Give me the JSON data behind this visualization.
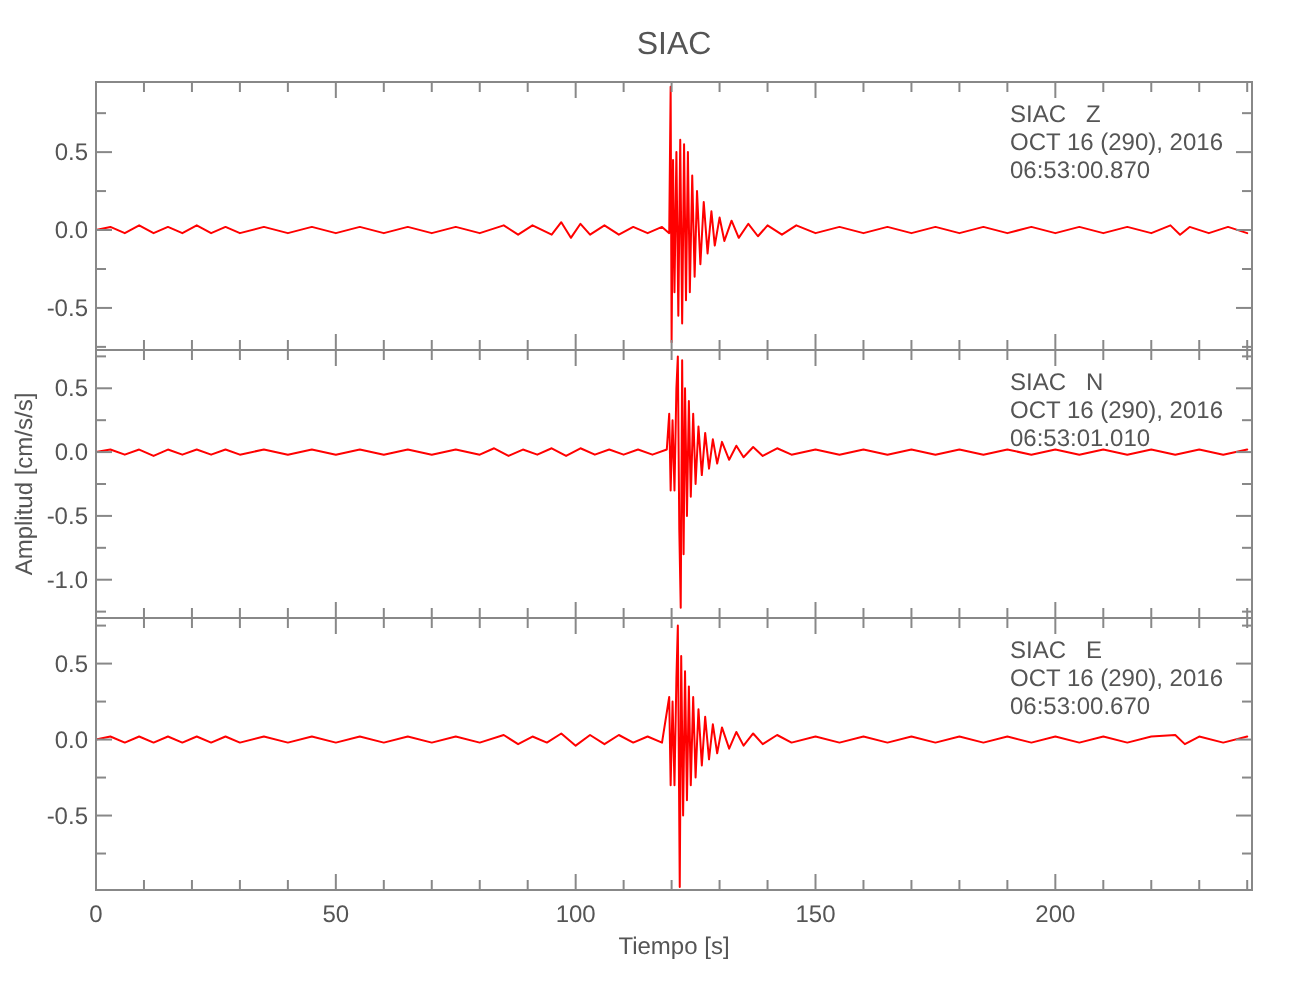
{
  "chart_data": [
    {
      "type": "line",
      "title": "SIAC",
      "annotations": [
        "SIAC   Z",
        "OCT 16 (290), 2016",
        "06:53:00.870"
      ],
      "tick_labels": "y",
      "xlim": [
        0,
        241
      ],
      "ylim": [
        -0.77,
        0.95
      ],
      "xticks": [
        {
          "value": 0,
          "label": null
        },
        {
          "value": 10,
          "label": null
        },
        {
          "value": 20,
          "label": null
        },
        {
          "value": 30,
          "label": null
        },
        {
          "value": 40,
          "label": null
        },
        {
          "value": 50,
          "label": null
        },
        {
          "value": 60,
          "label": null
        },
        {
          "value": 70,
          "label": null
        },
        {
          "value": 80,
          "label": null
        },
        {
          "value": 90,
          "label": null
        },
        {
          "value": 100,
          "label": null
        },
        {
          "value": 110,
          "label": null
        },
        {
          "value": 120,
          "label": null
        },
        {
          "value": 130,
          "label": null
        },
        {
          "value": 140,
          "label": null
        },
        {
          "value": 150,
          "label": null
        },
        {
          "value": 160,
          "label": null
        },
        {
          "value": 170,
          "label": null
        },
        {
          "value": 180,
          "label": null
        },
        {
          "value": 190,
          "label": null
        },
        {
          "value": 200,
          "label": null
        },
        {
          "value": 210,
          "label": null
        },
        {
          "value": 220,
          "label": null
        },
        {
          "value": 230,
          "label": null
        },
        {
          "value": 240,
          "label": null
        }
      ],
      "yticks": [
        {
          "value": 0.75,
          "label": null
        },
        {
          "value": 0.5,
          "label": "0.5"
        },
        {
          "value": 0.25,
          "label": null
        },
        {
          "value": 0,
          "label": "0.0"
        },
        {
          "value": -0.25,
          "label": null
        },
        {
          "value": -0.5,
          "label": "-0.5"
        },
        {
          "value": -0.75,
          "label": null
        }
      ],
      "series": [
        {
          "color": "#ff0000",
          "x": [
            0,
            3,
            6,
            9,
            12,
            15,
            18,
            21,
            24,
            27,
            30,
            35,
            40,
            45,
            50,
            55,
            60,
            65,
            70,
            75,
            80,
            85,
            88,
            91,
            95,
            97,
            99,
            101,
            103,
            106,
            109,
            112,
            115,
            118,
            119.5,
            119.8,
            120,
            120.3,
            120.6,
            121,
            121.4,
            121.8,
            122.2,
            122.6,
            123,
            123.4,
            123.8,
            124.3,
            124.8,
            125.3,
            126,
            126.7,
            127.5,
            128.3,
            129,
            130,
            131,
            132.5,
            134,
            136,
            138,
            140,
            143,
            146,
            150,
            155,
            160,
            165,
            170,
            175,
            180,
            185,
            190,
            195,
            200,
            205,
            210,
            215,
            220,
            224,
            226,
            228,
            232,
            236,
            240
          ],
          "values": [
            0,
            0.02,
            -0.02,
            0.03,
            -0.02,
            0.02,
            -0.02,
            0.03,
            -0.02,
            0.02,
            -0.02,
            0.02,
            -0.02,
            0.02,
            -0.02,
            0.02,
            -0.02,
            0.02,
            -0.02,
            0.02,
            -0.02,
            0.03,
            -0.03,
            0.03,
            -0.03,
            0.05,
            -0.05,
            0.04,
            -0.03,
            0.03,
            -0.03,
            0.02,
            -0.02,
            0.02,
            -0.02,
            0.92,
            -0.72,
            0.45,
            -0.4,
            0.5,
            -0.55,
            0.58,
            -0.6,
            0.55,
            -0.45,
            0.5,
            -0.4,
            0.35,
            -0.3,
            0.25,
            -0.22,
            0.18,
            -0.15,
            0.12,
            -0.1,
            0.08,
            -0.07,
            0.06,
            -0.05,
            0.04,
            -0.04,
            0.03,
            -0.03,
            0.03,
            -0.02,
            0.02,
            -0.02,
            0.02,
            -0.02,
            0.02,
            -0.02,
            0.02,
            -0.02,
            0.02,
            -0.02,
            0.02,
            -0.02,
            0.02,
            -0.02,
            0.03,
            -0.03,
            0.02,
            -0.02,
            0.02,
            -0.02
          ]
        }
      ]
    },
    {
      "type": "line",
      "ylabel": "Amplitud [cm/s/s]",
      "annotations": [
        "SIAC   N",
        "OCT 16 (290), 2016",
        "06:53:01.010"
      ],
      "tick_labels": "y",
      "xlim": [
        0,
        241
      ],
      "ylim": [
        -1.3,
        0.8
      ],
      "xticks": [
        {
          "value": 0,
          "label": null
        },
        {
          "value": 10,
          "label": null
        },
        {
          "value": 20,
          "label": null
        },
        {
          "value": 30,
          "label": null
        },
        {
          "value": 40,
          "label": null
        },
        {
          "value": 50,
          "label": null
        },
        {
          "value": 60,
          "label": null
        },
        {
          "value": 70,
          "label": null
        },
        {
          "value": 80,
          "label": null
        },
        {
          "value": 90,
          "label": null
        },
        {
          "value": 100,
          "label": null
        },
        {
          "value": 110,
          "label": null
        },
        {
          "value": 120,
          "label": null
        },
        {
          "value": 130,
          "label": null
        },
        {
          "value": 140,
          "label": null
        },
        {
          "value": 150,
          "label": null
        },
        {
          "value": 160,
          "label": null
        },
        {
          "value": 170,
          "label": null
        },
        {
          "value": 180,
          "label": null
        },
        {
          "value": 190,
          "label": null
        },
        {
          "value": 200,
          "label": null
        },
        {
          "value": 210,
          "label": null
        },
        {
          "value": 220,
          "label": null
        },
        {
          "value": 230,
          "label": null
        },
        {
          "value": 240,
          "label": null
        }
      ],
      "yticks": [
        {
          "value": 0.75,
          "label": null
        },
        {
          "value": 0.5,
          "label": "0.5"
        },
        {
          "value": 0.25,
          "label": null
        },
        {
          "value": 0,
          "label": "0.0"
        },
        {
          "value": -0.25,
          "label": null
        },
        {
          "value": -0.5,
          "label": "-0.5"
        },
        {
          "value": -0.75,
          "label": null
        },
        {
          "value": -1,
          "label": "-1.0"
        },
        {
          "value": -1.25,
          "label": null
        }
      ],
      "series": [
        {
          "color": "#ff0000",
          "x": [
            0,
            3,
            6,
            9,
            12,
            15,
            18,
            21,
            24,
            27,
            30,
            35,
            40,
            45,
            50,
            55,
            60,
            65,
            70,
            75,
            80,
            83,
            86,
            89,
            92,
            95,
            98,
            101,
            104,
            107,
            110,
            113,
            116,
            119,
            119.5,
            119.8,
            120.2,
            120.6,
            121,
            121.3,
            121.6,
            121.9,
            122.2,
            122.5,
            122.8,
            123.2,
            123.6,
            124,
            124.5,
            125,
            125.6,
            126.3,
            127,
            127.8,
            128.6,
            129.5,
            130.5,
            132,
            133.5,
            135,
            137,
            139,
            142,
            145,
            150,
            155,
            160,
            165,
            170,
            175,
            180,
            185,
            190,
            195,
            200,
            205,
            210,
            215,
            220,
            225,
            230,
            235,
            240
          ],
          "values": [
            0,
            0.02,
            -0.02,
            0.02,
            -0.03,
            0.02,
            -0.02,
            0.02,
            -0.02,
            0.02,
            -0.02,
            0.02,
            -0.02,
            0.02,
            -0.02,
            0.02,
            -0.02,
            0.02,
            -0.02,
            0.02,
            -0.02,
            0.03,
            -0.03,
            0.02,
            -0.02,
            0.03,
            -0.03,
            0.03,
            -0.02,
            0.02,
            -0.02,
            0.02,
            -0.02,
            0.02,
            0.3,
            -0.3,
            0.25,
            -0.3,
            0.5,
            0.75,
            -0.6,
            -1.22,
            0.72,
            -0.8,
            0.5,
            -0.5,
            0.4,
            -0.35,
            0.3,
            -0.25,
            0.2,
            -0.18,
            0.15,
            -0.13,
            0.1,
            -0.09,
            0.08,
            -0.06,
            0.05,
            -0.04,
            0.04,
            -0.03,
            0.03,
            -0.02,
            0.02,
            -0.02,
            0.02,
            -0.02,
            0.02,
            -0.02,
            0.02,
            -0.02,
            0.02,
            -0.02,
            0.02,
            -0.02,
            0.02,
            -0.02,
            0.02,
            -0.02,
            0.02,
            -0.02,
            0.02
          ]
        }
      ]
    },
    {
      "type": "line",
      "xlabel": "Tiempo [s]",
      "annotations": [
        "SIAC   E",
        "OCT 16 (290), 2016",
        "06:53:00.670"
      ],
      "xlim": [
        0,
        241
      ],
      "ylim": [
        -0.99,
        0.8
      ],
      "xticks": [
        {
          "value": 0,
          "label": "0"
        },
        {
          "value": 10,
          "label": null
        },
        {
          "value": 20,
          "label": null
        },
        {
          "value": 30,
          "label": null
        },
        {
          "value": 40,
          "label": null
        },
        {
          "value": 50,
          "label": "50"
        },
        {
          "value": 60,
          "label": null
        },
        {
          "value": 70,
          "label": null
        },
        {
          "value": 80,
          "label": null
        },
        {
          "value": 90,
          "label": null
        },
        {
          "value": 100,
          "label": "100"
        },
        {
          "value": 110,
          "label": null
        },
        {
          "value": 120,
          "label": null
        },
        {
          "value": 130,
          "label": null
        },
        {
          "value": 140,
          "label": null
        },
        {
          "value": 150,
          "label": "150"
        },
        {
          "value": 160,
          "label": null
        },
        {
          "value": 170,
          "label": null
        },
        {
          "value": 180,
          "label": null
        },
        {
          "value": 190,
          "label": null
        },
        {
          "value": 200,
          "label": "200"
        },
        {
          "value": 210,
          "label": null
        },
        {
          "value": 220,
          "label": null
        },
        {
          "value": 230,
          "label": null
        },
        {
          "value": 240,
          "label": null
        }
      ],
      "yticks": [
        {
          "value": 0.75,
          "label": null
        },
        {
          "value": 0.5,
          "label": "0.5"
        },
        {
          "value": 0.25,
          "label": null
        },
        {
          "value": 0,
          "label": "0.0"
        },
        {
          "value": -0.25,
          "label": null
        },
        {
          "value": -0.5,
          "label": "-0.5"
        },
        {
          "value": -0.75,
          "label": null
        }
      ],
      "series": [
        {
          "color": "#ff0000",
          "x": [
            0,
            3,
            6,
            9,
            12,
            15,
            18,
            21,
            24,
            27,
            30,
            35,
            40,
            45,
            50,
            55,
            60,
            65,
            70,
            75,
            80,
            85,
            88,
            91,
            94,
            97,
            100,
            103,
            106,
            109,
            112,
            115,
            118,
            119.5,
            119.8,
            120.2,
            120.6,
            121,
            121.3,
            121.7,
            122,
            122.4,
            122.8,
            123.2,
            123.6,
            124,
            124.5,
            125,
            125.6,
            126.3,
            127,
            127.8,
            128.6,
            129.5,
            130.5,
            132,
            133.5,
            135,
            137,
            139,
            142,
            145,
            150,
            155,
            160,
            165,
            170,
            175,
            180,
            185,
            190,
            195,
            200,
            205,
            210,
            215,
            220,
            225,
            227,
            230,
            235,
            240
          ],
          "values": [
            0,
            0.02,
            -0.02,
            0.02,
            -0.02,
            0.02,
            -0.02,
            0.02,
            -0.02,
            0.02,
            -0.02,
            0.02,
            -0.02,
            0.02,
            -0.02,
            0.02,
            -0.02,
            0.02,
            -0.02,
            0.02,
            -0.02,
            0.03,
            -0.03,
            0.02,
            -0.02,
            0.04,
            -0.04,
            0.03,
            -0.03,
            0.03,
            -0.02,
            0.02,
            -0.02,
            0.28,
            -0.3,
            0.25,
            -0.3,
            0.4,
            0.75,
            -0.97,
            0.55,
            -0.5,
            0.45,
            -0.4,
            0.35,
            -0.3,
            0.28,
            -0.25,
            0.2,
            -0.17,
            0.15,
            -0.13,
            0.1,
            -0.09,
            0.08,
            -0.06,
            0.05,
            -0.04,
            0.04,
            -0.03,
            0.03,
            -0.02,
            0.02,
            -0.02,
            0.02,
            -0.02,
            0.02,
            -0.02,
            0.02,
            -0.02,
            0.02,
            -0.02,
            0.02,
            -0.02,
            0.02,
            -0.02,
            0.02,
            0.03,
            -0.03,
            0.02,
            -0.02,
            0.02
          ]
        }
      ]
    }
  ]
}
